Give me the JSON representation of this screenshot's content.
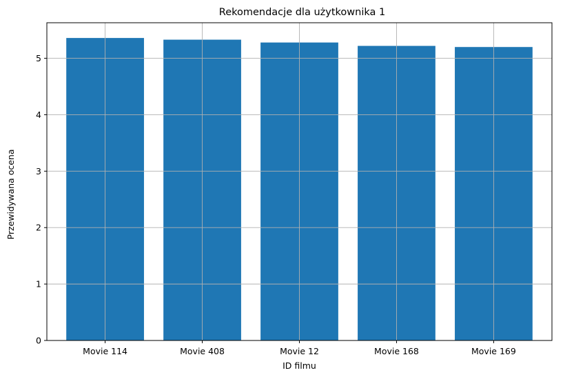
{
  "chart_data": {
    "type": "bar",
    "title": "Rekomendacje dla użytkownika 1",
    "xlabel": "ID filmu",
    "ylabel": "Przewidywana ocena",
    "categories": [
      "Movie 114",
      "Movie 408",
      "Movie 12",
      "Movie 168",
      "Movie 169"
    ],
    "values": [
      5.36,
      5.33,
      5.28,
      5.22,
      5.2
    ],
    "ylim": [
      0,
      5.63
    ],
    "yticks": [
      0,
      1,
      2,
      3,
      4,
      5
    ],
    "grid": true,
    "bar_color": "#1f77b4"
  }
}
